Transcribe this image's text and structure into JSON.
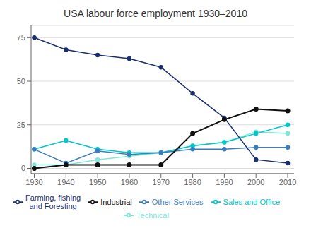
{
  "chart_data": {
    "type": "line",
    "title": "USA labour force employment 1930–2010",
    "x": [
      1930,
      1940,
      1950,
      1960,
      1970,
      1980,
      1990,
      2000,
      2010
    ],
    "series": [
      {
        "name": "Technical",
        "values": [
          2,
          2,
          5,
          7,
          9,
          13,
          15,
          21,
          20
        ],
        "color": "#7ee8d8"
      },
      {
        "name": "Sales and Office",
        "values": [
          11,
          16,
          11,
          9,
          9,
          13,
          15,
          20,
          25
        ],
        "color": "#00c5c7"
      },
      {
        "name": "Other Services",
        "values": [
          11,
          3,
          10,
          8,
          9,
          11,
          11,
          12,
          12
        ],
        "color": "#3a7ebf"
      },
      {
        "name": "Farming, fishing\nand Foresting",
        "values": [
          75,
          68,
          65,
          63,
          58,
          43,
          29,
          5,
          3
        ],
        "color": "#1a2f6e"
      },
      {
        "name": "Industrial",
        "values": [
          0,
          2,
          2,
          2,
          2,
          20,
          28,
          34,
          33
        ],
        "color": "#111111"
      }
    ],
    "xlim": [
      1929,
      2012
    ],
    "ylim": [
      -3,
      82
    ],
    "xticks": [
      1930,
      1940,
      1950,
      1960,
      1970,
      1980,
      1990,
      2000,
      2010
    ],
    "yticks": [
      0,
      25,
      50,
      75
    ],
    "grid": "y",
    "legend": "bottom",
    "marker": "circle"
  }
}
